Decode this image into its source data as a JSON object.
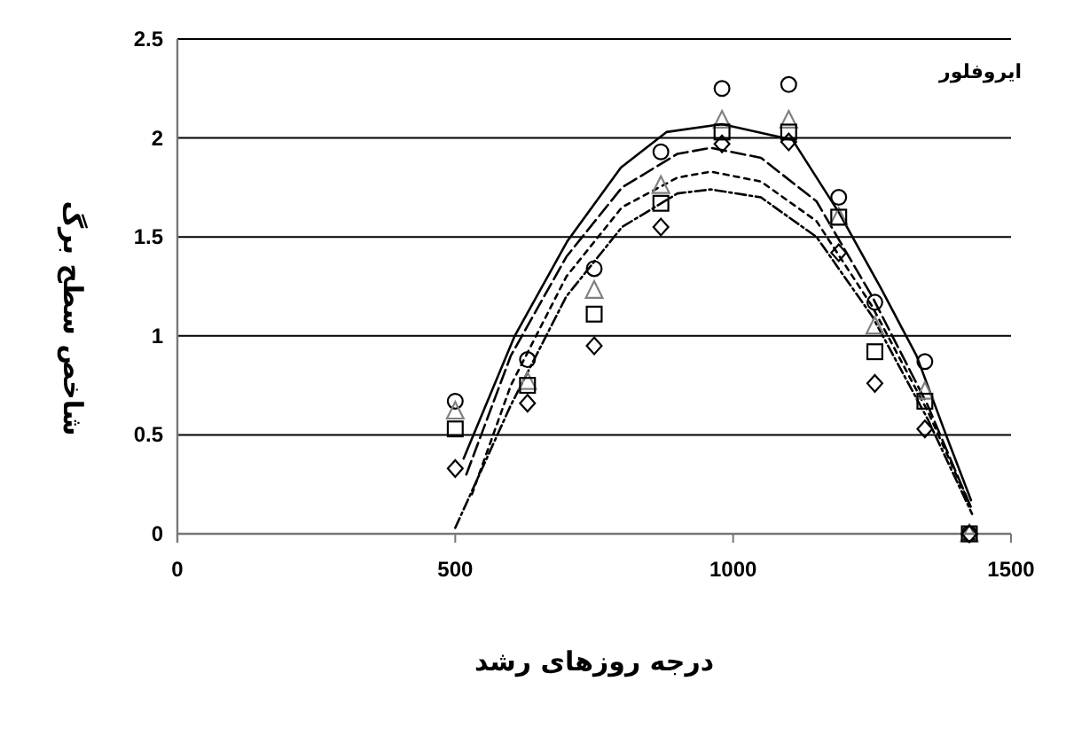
{
  "chart_data": {
    "type": "scatter",
    "xlabel": "درجه روزهای رشد",
    "ylabel": "شاخص سطح برگ",
    "annotations": [
      "ایروفلور"
    ],
    "xlim": [
      0,
      1500
    ],
    "xticks": [
      0,
      500,
      1000,
      1500
    ],
    "ylim": [
      0,
      2.5
    ],
    "yticks": [
      0,
      0.5,
      1,
      1.5,
      2,
      2.5
    ],
    "grid": "y",
    "series": [
      {
        "marker": "circle",
        "color": "#000000",
        "x": [
          500,
          630,
          750,
          870,
          980,
          1100,
          1190,
          1255,
          1345,
          1425
        ],
        "values": [
          0.67,
          0.88,
          1.34,
          1.93,
          2.25,
          2.27,
          1.7,
          1.17,
          0.87,
          0
        ]
      },
      {
        "marker": "triangle",
        "color": "#808080",
        "x": [
          500,
          630,
          750,
          870,
          980,
          1100,
          1190,
          1255,
          1345,
          1425
        ],
        "values": [
          0.62,
          0.77,
          1.23,
          1.76,
          2.09,
          2.09,
          1.6,
          1.05,
          0.72,
          0
        ]
      },
      {
        "marker": "square",
        "color": "#000000",
        "x": [
          500,
          630,
          750,
          870,
          980,
          1100,
          1190,
          1255,
          1345,
          1425
        ],
        "values": [
          0.53,
          0.75,
          1.11,
          1.67,
          2.03,
          2.03,
          1.6,
          0.92,
          0.67,
          0
        ]
      },
      {
        "marker": "diamond",
        "color": "#000000",
        "x": [
          500,
          630,
          750,
          870,
          980,
          1100,
          1190,
          1255,
          1345,
          1425
        ],
        "values": [
          0.33,
          0.66,
          0.95,
          1.55,
          1.97,
          1.98,
          1.42,
          0.76,
          0.53,
          0
        ]
      },
      {
        "type": "line",
        "marker": "none",
        "line_style": "solid",
        "color": "#000000",
        "x": [
          515,
          607,
          702,
          798,
          880,
          980,
          1107,
          1191,
          1266,
          1330,
          1383,
          1428
        ],
        "values": [
          0.38,
          1.0,
          1.48,
          1.85,
          2.03,
          2.07,
          1.99,
          1.62,
          1.24,
          0.9,
          0.5,
          0.17
        ]
      },
      {
        "type": "line",
        "marker": "none",
        "line_style": "dashed",
        "color": "#000000",
        "x": [
          520,
          600,
          700,
          800,
          900,
          960,
          1050,
          1150,
          1250,
          1350,
          1430
        ],
        "values": [
          0.3,
          0.9,
          1.4,
          1.75,
          1.92,
          1.95,
          1.9,
          1.68,
          1.2,
          0.65,
          0.12
        ]
      },
      {
        "type": "line",
        "marker": "none",
        "line_style": "dotted",
        "color": "#000000",
        "x": [
          530,
          600,
          700,
          800,
          900,
          960,
          1050,
          1150,
          1250,
          1350,
          1430
        ],
        "values": [
          0.2,
          0.75,
          1.3,
          1.65,
          1.8,
          1.83,
          1.78,
          1.58,
          1.15,
          0.62,
          0.12
        ]
      },
      {
        "type": "line",
        "marker": "none",
        "line_style": "dashdot",
        "color": "#000000",
        "x": [
          500,
          600,
          700,
          800,
          900,
          960,
          1050,
          1150,
          1250,
          1350,
          1430
        ],
        "values": [
          0.03,
          0.65,
          1.2,
          1.55,
          1.72,
          1.74,
          1.7,
          1.5,
          1.1,
          0.58,
          0.1
        ]
      }
    ]
  }
}
